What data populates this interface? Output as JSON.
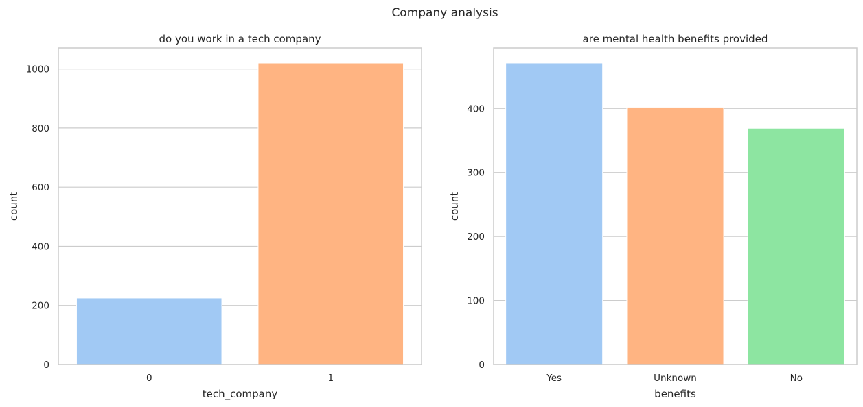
{
  "figure": {
    "title": "Company analysis"
  },
  "colors": {
    "grid": "#cccccc",
    "spine": "#cccccc",
    "text": "#262626",
    "palette": [
      "#a1c9f4",
      "#ffb482",
      "#8de5a1"
    ]
  },
  "chart_data": [
    {
      "type": "bar",
      "title": "do you work in a tech company",
      "xlabel": "tech_company",
      "ylabel": "count",
      "categories": [
        "0",
        "1"
      ],
      "values": [
        225,
        1020
      ],
      "ylim": [
        0,
        1071
      ],
      "yticks": [
        0,
        200,
        400,
        600,
        800,
        1000
      ],
      "grid": true,
      "colors": [
        "#a1c9f4",
        "#ffb482"
      ]
    },
    {
      "type": "bar",
      "title": "are mental health benefits provided",
      "xlabel": "benefits",
      "ylabel": "count",
      "categories": [
        "Yes",
        "Unknown",
        "No"
      ],
      "values": [
        471,
        402,
        369
      ],
      "ylim": [
        0,
        494.5
      ],
      "yticks": [
        0,
        100,
        200,
        300,
        400
      ],
      "grid": true,
      "colors": [
        "#a1c9f4",
        "#ffb482",
        "#8de5a1"
      ]
    }
  ]
}
